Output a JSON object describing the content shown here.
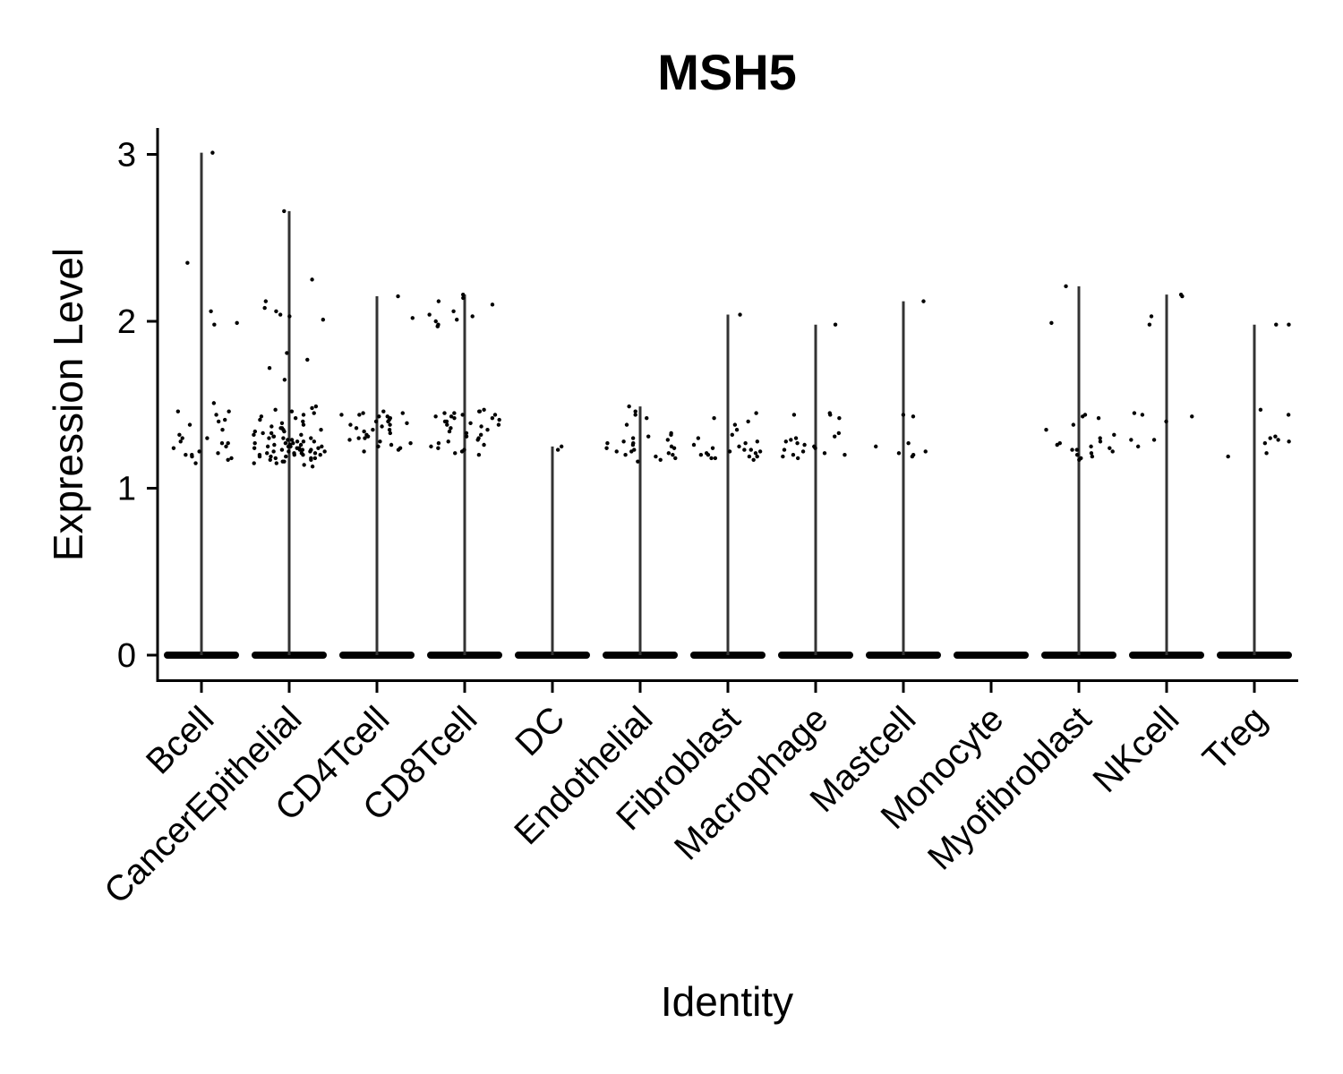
{
  "chart_data": {
    "type": "violin",
    "title": "MSH5",
    "xlabel": "Identity",
    "ylabel": "Expression Level",
    "ylim": [
      -0.15,
      3.15
    ],
    "yticks": [
      0,
      1,
      2,
      3
    ],
    "ytick_labels": [
      "0",
      "1",
      "2",
      "3"
    ],
    "categories": [
      "Bcell",
      "CancerEpithelial",
      "CD4Tcell",
      "CD8Tcell",
      "DC",
      "Endothelial",
      "Fibroblast",
      "Macrophage",
      "Mastcell",
      "Monocyte",
      "Myofibroblast",
      "NKcell",
      "Treg"
    ],
    "max_values": [
      3.01,
      2.66,
      2.15,
      2.16,
      1.25,
      1.49,
      2.04,
      1.98,
      2.12,
      0,
      2.21,
      2.16,
      1.98
    ],
    "series": [
      {
        "values": [
          [
            3.01,
            2.35,
            2.06,
            1.99,
            1.98,
            1.51,
            1.46,
            1.46,
            1.44,
            1.41,
            1.4,
            1.38,
            1.35,
            1.32,
            1.3,
            1.3,
            1.28,
            1.27,
            1.27,
            1.25,
            1.24,
            1.22,
            1.21,
            1.2,
            1.2,
            1.19,
            1.18,
            1.17,
            1.15
          ],
          [
            2.66,
            2.25,
            2.12,
            2.08,
            2.06,
            2.04,
            2.03,
            2.01,
            1.81,
            1.77,
            1.72,
            1.65,
            1.49,
            1.48,
            1.47,
            1.46,
            1.45,
            1.44,
            1.43,
            1.42,
            1.41,
            1.4,
            1.39,
            1.38,
            1.37,
            1.36,
            1.36,
            1.35,
            1.35,
            1.34,
            1.34,
            1.33,
            1.33,
            1.32,
            1.32,
            1.31,
            1.31,
            1.3,
            1.3,
            1.3,
            1.29,
            1.29,
            1.28,
            1.28,
            1.28,
            1.27,
            1.27,
            1.27,
            1.26,
            1.26,
            1.26,
            1.25,
            1.25,
            1.25,
            1.25,
            1.24,
            1.24,
            1.24,
            1.24,
            1.23,
            1.23,
            1.23,
            1.23,
            1.22,
            1.22,
            1.22,
            1.22,
            1.21,
            1.21,
            1.21,
            1.21,
            1.2,
            1.2,
            1.2,
            1.2,
            1.19,
            1.19,
            1.19,
            1.18,
            1.18,
            1.18,
            1.17,
            1.17,
            1.16,
            1.16,
            1.15,
            1.15,
            1.14,
            1.13
          ],
          [
            2.15,
            2.02,
            1.46,
            1.45,
            1.45,
            1.44,
            1.44,
            1.43,
            1.43,
            1.42,
            1.41,
            1.4,
            1.4,
            1.39,
            1.38,
            1.38,
            1.37,
            1.36,
            1.35,
            1.35,
            1.34,
            1.33,
            1.32,
            1.31,
            1.3,
            1.3,
            1.29,
            1.28,
            1.27,
            1.26,
            1.25,
            1.24,
            1.23,
            1.22
          ],
          [
            2.16,
            2.14,
            2.12,
            2.1,
            2.06,
            2.04,
            2.03,
            2.01,
            2.0,
            1.98,
            1.97,
            1.97,
            1.47,
            1.46,
            1.46,
            1.45,
            1.45,
            1.44,
            1.44,
            1.43,
            1.43,
            1.42,
            1.42,
            1.41,
            1.4,
            1.4,
            1.39,
            1.38,
            1.38,
            1.37,
            1.36,
            1.35,
            1.34,
            1.33,
            1.32,
            1.31,
            1.3,
            1.29,
            1.28,
            1.27,
            1.26,
            1.25,
            1.24,
            1.23,
            1.22,
            1.21,
            1.2
          ],
          [
            1.25,
            1.23
          ],
          [
            1.49,
            1.46,
            1.44,
            1.42,
            1.38,
            1.33,
            1.32,
            1.31,
            1.3,
            1.29,
            1.28,
            1.27,
            1.27,
            1.26,
            1.25,
            1.24,
            1.24,
            1.23,
            1.22,
            1.22,
            1.21,
            1.2,
            1.2,
            1.19,
            1.18,
            1.17,
            1.16
          ],
          [
            2.04,
            1.45,
            1.42,
            1.4,
            1.38,
            1.35,
            1.32,
            1.3,
            1.28,
            1.27,
            1.26,
            1.25,
            1.24,
            1.23,
            1.23,
            1.22,
            1.22,
            1.21,
            1.21,
            1.2,
            1.2,
            1.19,
            1.19,
            1.18,
            1.18,
            1.17
          ],
          [
            1.98,
            1.45,
            1.44,
            1.44,
            1.42,
            1.33,
            1.31,
            1.3,
            1.29,
            1.28,
            1.27,
            1.26,
            1.25,
            1.24,
            1.23,
            1.22,
            1.21,
            1.2,
            1.2,
            1.19,
            1.18
          ],
          [
            2.12,
            1.44,
            1.43,
            1.27,
            1.25,
            1.22,
            1.21,
            1.2,
            1.19
          ],
          [],
          [
            2.21,
            1.99,
            1.44,
            1.43,
            1.42,
            1.38,
            1.35,
            1.32,
            1.3,
            1.28,
            1.27,
            1.26,
            1.25,
            1.24,
            1.23,
            1.23,
            1.22,
            1.21,
            1.2,
            1.19,
            1.18,
            1.17
          ],
          [
            2.16,
            2.15,
            2.03,
            1.98,
            1.45,
            1.44,
            1.43,
            1.4,
            1.29,
            1.29,
            1.25
          ],
          [
            1.98,
            1.98,
            1.47,
            1.44,
            1.31,
            1.3,
            1.29,
            1.28,
            1.27,
            1.21,
            1.19
          ]
        ]
      }
    ],
    "zero_band": true,
    "point_color": "#000000",
    "line_color": "#333333",
    "grid": false,
    "legend": "none"
  }
}
